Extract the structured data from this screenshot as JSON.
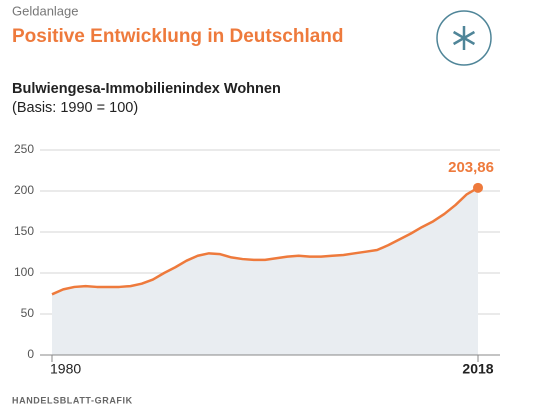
{
  "chart_data": {
    "type": "line",
    "kicker": "Geldanlage",
    "title": "Positive Entwicklung in Deutschland",
    "subtitle": "Bulwiengesa-Immobilienindex Wohnen",
    "note": "(Basis: 1990 = 100)",
    "source": "HANDELSBLATT-GRAFIK",
    "x": [
      1980,
      1981,
      1982,
      1983,
      1984,
      1985,
      1986,
      1987,
      1988,
      1989,
      1990,
      1991,
      1992,
      1993,
      1994,
      1995,
      1996,
      1997,
      1998,
      1999,
      2000,
      2001,
      2002,
      2003,
      2004,
      2005,
      2006,
      2007,
      2008,
      2009,
      2010,
      2011,
      2012,
      2013,
      2014,
      2015,
      2016,
      2017,
      2018
    ],
    "values": [
      74,
      80,
      83,
      84,
      83,
      83,
      83,
      84,
      87,
      92,
      100,
      107,
      115,
      121,
      124,
      123,
      119,
      117,
      116,
      116,
      118,
      120,
      121,
      120,
      120,
      121,
      122,
      124,
      126,
      128,
      134,
      141,
      148,
      156,
      163,
      172,
      183,
      196,
      203.86
    ],
    "value_labels": [
      null,
      null,
      null,
      null,
      null,
      null,
      null,
      null,
      null,
      null,
      null,
      null,
      null,
      null,
      null,
      null,
      null,
      null,
      null,
      null,
      null,
      null,
      null,
      null,
      null,
      null,
      null,
      null,
      null,
      null,
      null,
      null,
      null,
      null,
      null,
      null,
      null,
      null,
      "203,86"
    ],
    "color": "#ee7a3c",
    "area_color": "#e9edf1",
    "xlim": [
      1980,
      2018
    ],
    "xticks": [
      1980,
      2018
    ],
    "ylim": [
      0,
      250
    ],
    "yticks": [
      0,
      50,
      100,
      150,
      200,
      250
    ],
    "grid": true
  }
}
